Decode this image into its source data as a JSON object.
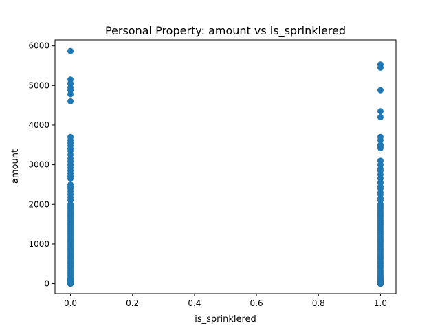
{
  "chart_data": {
    "type": "scatter",
    "title": "Personal Property: amount vs is_sprinklered",
    "xlabel": "is_sprinklered",
    "ylabel": "amount",
    "xlim": [
      -0.05,
      1.05
    ],
    "ylim": [
      -250,
      6150
    ],
    "xticks": [
      0.0,
      0.2,
      0.4,
      0.6,
      0.8,
      1.0
    ],
    "xtick_labels": [
      "0.0",
      "0.2",
      "0.4",
      "0.6",
      "0.8",
      "1.0"
    ],
    "yticks": [
      0,
      1000,
      2000,
      3000,
      4000,
      5000,
      6000
    ],
    "ytick_labels": [
      "0",
      "1000",
      "2000",
      "3000",
      "4000",
      "5000",
      "6000"
    ],
    "grid": false,
    "marker_color": "#1f77b4",
    "series": [
      {
        "x": [
          0,
          0,
          0,
          0,
          0,
          0,
          0,
          0,
          0,
          0,
          0,
          0,
          0,
          0,
          0,
          0,
          0,
          0,
          0,
          0,
          0,
          0,
          0,
          0,
          0,
          0,
          0,
          0,
          0,
          0,
          0,
          0,
          0,
          0,
          0,
          0,
          0,
          0,
          0,
          0,
          0,
          0,
          0,
          0,
          0,
          0,
          0,
          0,
          0,
          0,
          0,
          0,
          0,
          0,
          0,
          0,
          0,
          0,
          0,
          0,
          0,
          0,
          0,
          0,
          0,
          0,
          0,
          0,
          0,
          0,
          0,
          0,
          0,
          0,
          0,
          0,
          0,
          0,
          0,
          0,
          0,
          0,
          0,
          0,
          0,
          0,
          0,
          0,
          1,
          1,
          1,
          1,
          1,
          1,
          1,
          1,
          1,
          1,
          1,
          1,
          1,
          1,
          1,
          1,
          1,
          1,
          1,
          1,
          1,
          1,
          1,
          1,
          1,
          1,
          1,
          1,
          1,
          1,
          1,
          1,
          1,
          1,
          1,
          1,
          1,
          1,
          1,
          1,
          1,
          1,
          1,
          1,
          1,
          1,
          1,
          1,
          1,
          1,
          1,
          1,
          1,
          1,
          1,
          1,
          1,
          1,
          1,
          1,
          1,
          1,
          1,
          1,
          1,
          1,
          1,
          1,
          1,
          1,
          1,
          1,
          1,
          1,
          1,
          1,
          1,
          1,
          1,
          1,
          1,
          1,
          1,
          1,
          1,
          1,
          1,
          1,
          1,
          1,
          1,
          1,
          1,
          1,
          1
        ],
        "y": [
          5870,
          5150,
          5050,
          4950,
          4880,
          4780,
          4600,
          3700,
          3620,
          3550,
          3480,
          3400,
          3350,
          3250,
          3150,
          3080,
          3000,
          2920,
          2850,
          2780,
          2700,
          2650,
          2500,
          2450,
          2400,
          2320,
          2250,
          2180,
          2100,
          2000,
          1950,
          1900,
          1850,
          1800,
          1750,
          1700,
          1650,
          1600,
          1550,
          1500,
          1450,
          1400,
          1350,
          1300,
          1250,
          1200,
          1150,
          1100,
          1050,
          1000,
          950,
          900,
          850,
          800,
          750,
          700,
          650,
          600,
          550,
          500,
          450,
          400,
          350,
          300,
          250,
          200,
          150,
          120,
          100,
          80,
          60,
          50,
          40,
          30,
          25,
          20,
          15,
          10,
          8,
          5,
          3,
          2,
          1,
          0,
          0,
          0,
          0,
          0,
          5530,
          5450,
          4880,
          4350,
          4200,
          3700,
          3620,
          3500,
          3450,
          3420,
          3100,
          3000,
          2900,
          2850,
          2750,
          2650,
          2550,
          2450,
          2400,
          2300,
          2250,
          2150,
          2100,
          2000,
          1950,
          1900,
          1850,
          1800,
          1750,
          1700,
          1650,
          1600,
          1550,
          1500,
          1450,
          1400,
          1350,
          1300,
          1250,
          1200,
          1150,
          1100,
          1050,
          1000,
          950,
          900,
          850,
          800,
          750,
          700,
          650,
          600,
          550,
          500,
          450,
          400,
          350,
          300,
          250,
          200,
          180,
          150,
          120,
          100,
          90,
          80,
          70,
          60,
          50,
          45,
          40,
          35,
          30,
          25,
          20,
          18,
          15,
          12,
          10,
          8,
          6,
          5,
          4,
          3,
          2,
          1,
          0,
          0,
          0,
          0,
          0,
          0,
          0,
          0,
          0
        ]
      }
    ]
  }
}
